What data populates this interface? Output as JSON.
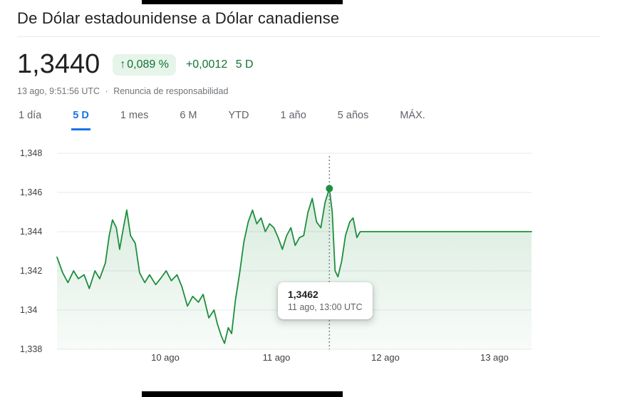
{
  "page": {
    "title": "De Dólar estadounidense a Dólar canadiense"
  },
  "quote": {
    "price": "1,3440",
    "change_arrow": "↑",
    "change_percent": "0,089 %",
    "change_value": "+0,0012",
    "change_period": "5 D",
    "timestamp": "13 ago, 9:51:56 UTC",
    "separator": "·",
    "disclaimer_label": "Renuncia de responsabilidad"
  },
  "tabs": [
    {
      "label": "1 día",
      "selected": false
    },
    {
      "label": "5 D",
      "selected": true
    },
    {
      "label": "1 mes",
      "selected": false
    },
    {
      "label": "6 M",
      "selected": false
    },
    {
      "label": "YTD",
      "selected": false
    },
    {
      "label": "1 año",
      "selected": false
    },
    {
      "label": "5 años",
      "selected": false
    },
    {
      "label": "MÁX.",
      "selected": false
    }
  ],
  "tooltip": {
    "value": "1,3462",
    "time": "11 ago, 13:00 UTC"
  },
  "chart_data": {
    "type": "area",
    "title": "De Dólar estadounidense a Dólar canadiense — 5 D",
    "xlabel": "",
    "ylabel": "",
    "ylim": [
      1.338,
      1.348
    ],
    "grid": true,
    "legend": "none",
    "line_color": "#1e8e3e",
    "area_top_opacity": 0.18,
    "area_bottom_opacity": 0.03,
    "y_ticks": [
      {
        "value": 1.348,
        "label": "1,348"
      },
      {
        "value": 1.346,
        "label": "1,346"
      },
      {
        "value": 1.344,
        "label": "1,344"
      },
      {
        "value": 1.342,
        "label": "1,342"
      },
      {
        "value": 1.34,
        "label": "1,34"
      },
      {
        "value": 1.338,
        "label": "1,338"
      }
    ],
    "x_ticks": [
      {
        "f": 0.228,
        "label": "10 ago"
      },
      {
        "f": 0.462,
        "label": "11 ago"
      },
      {
        "f": 0.692,
        "label": "12 ago"
      },
      {
        "f": 0.922,
        "label": "13 ago"
      }
    ],
    "marker": {
      "f": 0.574,
      "value": 1.3462,
      "label": "1,3462",
      "time": "11 ago, 13:00 UTC"
    },
    "points": [
      [
        0.0,
        1.3427
      ],
      [
        0.012,
        1.3419
      ],
      [
        0.023,
        1.3414
      ],
      [
        0.035,
        1.342
      ],
      [
        0.045,
        1.3416
      ],
      [
        0.057,
        1.3418
      ],
      [
        0.068,
        1.3411
      ],
      [
        0.08,
        1.342
      ],
      [
        0.09,
        1.3416
      ],
      [
        0.102,
        1.3424
      ],
      [
        0.11,
        1.3438
      ],
      [
        0.117,
        1.3446
      ],
      [
        0.125,
        1.3442
      ],
      [
        0.132,
        1.3431
      ],
      [
        0.14,
        1.3442
      ],
      [
        0.147,
        1.3451
      ],
      [
        0.155,
        1.3438
      ],
      [
        0.165,
        1.3434
      ],
      [
        0.174,
        1.3419
      ],
      [
        0.185,
        1.3414
      ],
      [
        0.195,
        1.3418
      ],
      [
        0.208,
        1.3413
      ],
      [
        0.218,
        1.3416
      ],
      [
        0.23,
        1.342
      ],
      [
        0.241,
        1.3415
      ],
      [
        0.253,
        1.3418
      ],
      [
        0.263,
        1.3412
      ],
      [
        0.275,
        1.3402
      ],
      [
        0.286,
        1.3407
      ],
      [
        0.298,
        1.3404
      ],
      [
        0.308,
        1.3408
      ],
      [
        0.32,
        1.3396
      ],
      [
        0.331,
        1.34
      ],
      [
        0.338,
        1.3393
      ],
      [
        0.346,
        1.3387
      ],
      [
        0.353,
        1.3383
      ],
      [
        0.361,
        1.3391
      ],
      [
        0.368,
        1.3388
      ],
      [
        0.376,
        1.3405
      ],
      [
        0.385,
        1.3419
      ],
      [
        0.394,
        1.3435
      ],
      [
        0.403,
        1.3445
      ],
      [
        0.412,
        1.3451
      ],
      [
        0.421,
        1.3444
      ],
      [
        0.43,
        1.3447
      ],
      [
        0.439,
        1.344
      ],
      [
        0.448,
        1.3444
      ],
      [
        0.457,
        1.3442
      ],
      [
        0.466,
        1.3437
      ],
      [
        0.475,
        1.3431
      ],
      [
        0.484,
        1.3438
      ],
      [
        0.493,
        1.3442
      ],
      [
        0.502,
        1.3433
      ],
      [
        0.511,
        1.3437
      ],
      [
        0.52,
        1.3438
      ],
      [
        0.529,
        1.345
      ],
      [
        0.538,
        1.3457
      ],
      [
        0.547,
        1.3445
      ],
      [
        0.556,
        1.3442
      ],
      [
        0.565,
        1.3455
      ],
      [
        0.574,
        1.3462
      ],
      [
        0.58,
        1.345
      ],
      [
        0.586,
        1.342
      ],
      [
        0.592,
        1.3417
      ],
      [
        0.6,
        1.3425
      ],
      [
        0.608,
        1.3438
      ],
      [
        0.617,
        1.3445
      ],
      [
        0.624,
        1.3447
      ],
      [
        0.632,
        1.3437
      ],
      [
        0.639,
        1.344
      ],
      [
        1.0,
        1.344
      ]
    ]
  }
}
